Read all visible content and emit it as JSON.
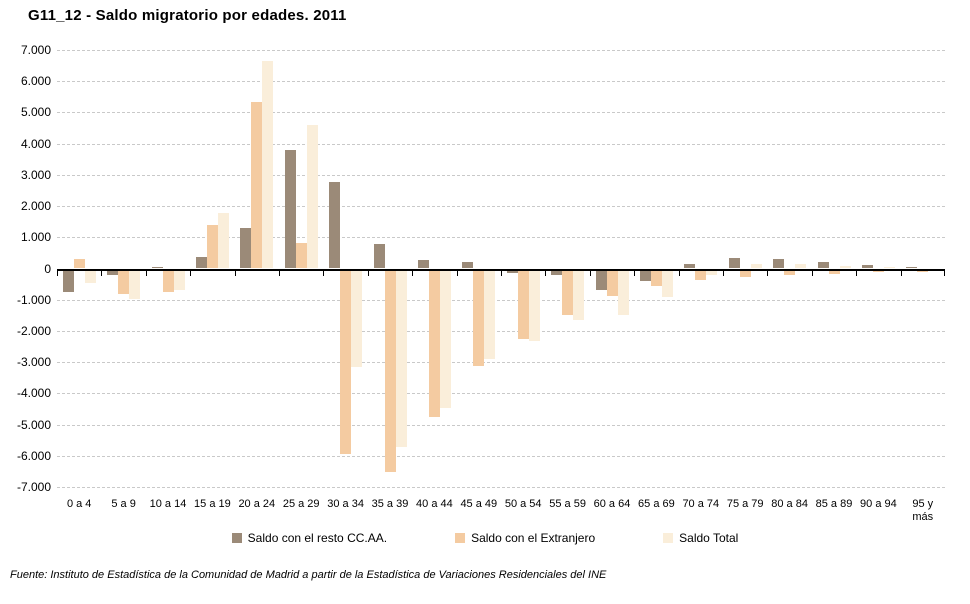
{
  "chart_data": {
    "type": "bar",
    "title": "G11_12 - Saldo migratorio por edades. 2011",
    "categories": [
      "0 a 4",
      "5 a 9",
      "10 a 14",
      "15 a 19",
      "20 a 24",
      "25 a 29",
      "30 a 34",
      "35 a 39",
      "40 a 44",
      "45 a 49",
      "50 a 54",
      "55 a 59",
      "60 a 64",
      "65 a 69",
      "70 a 74",
      "75 a 79",
      "80 a 84",
      "85 a 89",
      "90 a 94",
      "95 y más"
    ],
    "series": [
      {
        "name": "Saldo con el resto CC.AA.",
        "color": "#9b8a78",
        "values": [
          -700,
          -150,
          50,
          380,
          1300,
          3790,
          2780,
          800,
          280,
          200,
          -80,
          -140,
          -610,
          -340,
          150,
          350,
          300,
          200,
          110,
          40
        ]
      },
      {
        "name": "Saldo con el Extranjero",
        "color": "#f4cba1",
        "values": [
          300,
          -750,
          -680,
          1400,
          5340,
          830,
          -5880,
          -6450,
          -4680,
          -3050,
          -2190,
          -1430,
          -830,
          -510,
          -300,
          -200,
          -150,
          -120,
          -60,
          -40
        ]
      },
      {
        "name": "Saldo Total",
        "color": "#faeeda",
        "values": [
          -400,
          -900,
          -630,
          1780,
          6640,
          4600,
          -3100,
          -5650,
          -4400,
          -2850,
          -2270,
          -1570,
          -1440,
          -850,
          -150,
          150,
          150,
          80,
          50,
          0
        ]
      }
    ],
    "xlabel": "",
    "ylabel": "",
    "ylim": [
      -7000,
      7000
    ],
    "ytick_step": 1000,
    "y_tick_labels": [
      "7.000",
      "6.000",
      "5.000",
      "4.000",
      "3.000",
      "2.000",
      "1.000",
      "0",
      "-1.000",
      "-2.000",
      "-3.000",
      "-4.000",
      "-5.000",
      "-6.000",
      "-7.000"
    ],
    "grid": "horizontal-dashed",
    "legend_position": "bottom",
    "axis_color": "#000000",
    "gridline_color": "#c9c9c9"
  },
  "footer": {
    "source": "Fuente: Instituto de Estadística de la Comunidad de Madrid a partir de la Estadística de Variaciones Residenciales del INE"
  }
}
